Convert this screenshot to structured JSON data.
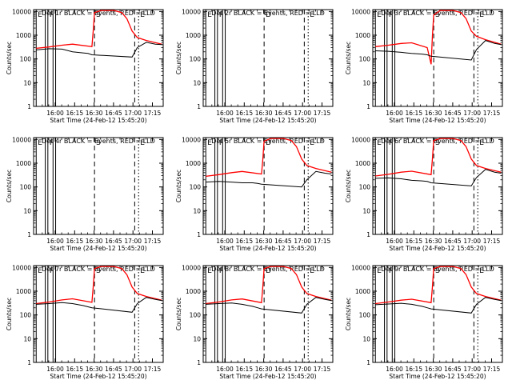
{
  "shared": {
    "type": "line",
    "x_ticks": [
      "16:00",
      "16:15",
      "16:30",
      "16:45",
      "17:00",
      "17:15"
    ],
    "xlabel": "Start Time (24-Feb-12 15:45:20)",
    "ylabel": "Counts/sec",
    "y_ticks": [
      "1",
      "10",
      "100",
      "1000",
      "10000"
    ],
    "ylim": [
      1,
      12000
    ],
    "xlim_minutes_after_start": [
      -2,
      98
    ],
    "y_scale": "log",
    "colors": {
      "events": "#000000",
      "lld": "#ff0000",
      "axes": "#000000",
      "background": "#ffffff"
    }
  },
  "chart_data": [
    {
      "type": "line",
      "title": "Det 1r BLACK = Events, RED = LLD",
      "markers": [
        {
          "minute": 0,
          "label": "E",
          "style": "solid"
        },
        {
          "minute": 7,
          "label": "",
          "style": "solid"
        },
        {
          "minute": 9,
          "label": "F",
          "style": "solid"
        },
        {
          "minute": 13,
          "label": "",
          "style": "solid"
        },
        {
          "minute": 15,
          "label": "",
          "style": "solid"
        },
        {
          "minute": 45,
          "label": "S",
          "style": "dashed"
        },
        {
          "minute": 76,
          "label": "",
          "style": "dashed"
        },
        {
          "minute": 79,
          "label": "E",
          "style": "dotted"
        }
      ],
      "series": [
        {
          "color": "#ff0000",
          "x": [
            0,
            10,
            20,
            28,
            43,
            44,
            45,
            50,
            60,
            66,
            70,
            74,
            78,
            85,
            97
          ],
          "y": [
            280,
            320,
            380,
            420,
            330,
            1500,
            9000,
            11000,
            11000,
            9000,
            5000,
            1500,
            800,
            600,
            420
          ]
        },
        {
          "color": "#000000",
          "x": [
            0,
            10,
            20,
            28,
            36,
            40,
            43,
            74,
            78,
            85,
            92,
            97
          ],
          "y": [
            240,
            270,
            260,
            200,
            180,
            170,
            150,
            120,
            300,
            500,
            420,
            400
          ]
        }
      ]
    },
    {
      "type": "line",
      "title": "Det 2r BLACK = Events, RED = LLD",
      "markers": [
        {
          "minute": 0,
          "label": "E",
          "style": "solid"
        },
        {
          "minute": 7,
          "label": "",
          "style": "solid"
        },
        {
          "minute": 9,
          "label": "F",
          "style": "solid"
        },
        {
          "minute": 13,
          "label": "",
          "style": "solid"
        },
        {
          "minute": 15,
          "label": "",
          "style": "solid"
        },
        {
          "minute": 45,
          "label": "D",
          "style": "dashed"
        },
        {
          "minute": 76,
          "label": "",
          "style": "dashed"
        },
        {
          "minute": 79,
          "label": "E",
          "style": "dotted"
        }
      ],
      "series": []
    },
    {
      "type": "line",
      "title": "Det 3r BLACK = Events, RED = LLD",
      "markers": [
        {
          "minute": 0,
          "label": "E",
          "style": "solid"
        },
        {
          "minute": 7,
          "label": "",
          "style": "solid"
        },
        {
          "minute": 9,
          "label": "F",
          "style": "solid"
        },
        {
          "minute": 13,
          "label": "",
          "style": "solid"
        },
        {
          "minute": 15,
          "label": "",
          "style": "solid"
        },
        {
          "minute": 45,
          "label": "S",
          "style": "dashed"
        },
        {
          "minute": 76,
          "label": "",
          "style": "dashed"
        },
        {
          "minute": 79,
          "label": "E",
          "style": "dotted"
        }
      ],
      "series": [
        {
          "color": "#ff0000",
          "x": [
            0,
            10,
            20,
            28,
            40,
            43,
            44,
            45,
            50,
            60,
            66,
            70,
            74,
            78,
            85,
            97
          ],
          "y": [
            330,
            380,
            450,
            480,
            300,
            60,
            900,
            7000,
            11000,
            11000,
            9000,
            5000,
            1500,
            900,
            650,
            420
          ]
        },
        {
          "color": "#000000",
          "x": [
            0,
            10,
            20,
            28,
            36,
            40,
            43,
            74,
            78,
            85,
            92,
            97
          ],
          "y": [
            220,
            210,
            190,
            170,
            160,
            150,
            130,
            90,
            250,
            600,
            450,
            400
          ]
        }
      ]
    },
    {
      "type": "line",
      "title": "Det 4r BLACK = Events, RED = LLD",
      "markers": [
        {
          "minute": 0,
          "label": "E",
          "style": "solid"
        },
        {
          "minute": 7,
          "label": "",
          "style": "solid"
        },
        {
          "minute": 9,
          "label": "F",
          "style": "solid"
        },
        {
          "minute": 13,
          "label": "",
          "style": "solid"
        },
        {
          "minute": 15,
          "label": "",
          "style": "solid"
        },
        {
          "minute": 45,
          "label": "S",
          "style": "dashed"
        },
        {
          "minute": 76,
          "label": "",
          "style": "dashed"
        },
        {
          "minute": 79,
          "label": "E",
          "style": "dotted"
        }
      ],
      "series": []
    },
    {
      "type": "line",
      "title": "Det 5r BLACK = Events, RED = LLD",
      "markers": [
        {
          "minute": 0,
          "label": "E",
          "style": "solid"
        },
        {
          "minute": 7,
          "label": "",
          "style": "solid"
        },
        {
          "minute": 9,
          "label": "F",
          "style": "solid"
        },
        {
          "minute": 13,
          "label": "",
          "style": "solid"
        },
        {
          "minute": 15,
          "label": "",
          "style": "solid"
        },
        {
          "minute": 45,
          "label": "D",
          "style": "dashed"
        },
        {
          "minute": 76,
          "label": "",
          "style": "dashed"
        },
        {
          "minute": 79,
          "label": "E",
          "style": "dotted"
        }
      ],
      "series": [
        {
          "color": "#ff0000",
          "x": [
            0,
            10,
            20,
            28,
            43,
            44,
            45,
            50,
            60,
            66,
            70,
            74,
            78,
            85,
            97
          ],
          "y": [
            280,
            330,
            400,
            450,
            350,
            1400,
            8500,
            11000,
            11000,
            9000,
            5000,
            1500,
            800,
            600,
            420
          ]
        },
        {
          "color": "#000000",
          "x": [
            0,
            10,
            20,
            28,
            36,
            40,
            43,
            74,
            78,
            85,
            92,
            97
          ],
          "y": [
            160,
            170,
            160,
            150,
            150,
            140,
            130,
            100,
            200,
            450,
            380,
            350
          ]
        }
      ]
    },
    {
      "type": "line",
      "title": "Det 6r BLACK = Events, RED = LLD",
      "markers": [
        {
          "minute": 0,
          "label": "E",
          "style": "solid"
        },
        {
          "minute": 7,
          "label": "",
          "style": "solid"
        },
        {
          "minute": 9,
          "label": "F",
          "style": "solid"
        },
        {
          "minute": 13,
          "label": "",
          "style": "solid"
        },
        {
          "minute": 15,
          "label": "",
          "style": "solid"
        },
        {
          "minute": 45,
          "label": "S",
          "style": "dashed"
        },
        {
          "minute": 76,
          "label": "",
          "style": "dashed"
        },
        {
          "minute": 79,
          "label": "E",
          "style": "dotted"
        }
      ],
      "series": [
        {
          "color": "#ff0000",
          "x": [
            0,
            10,
            20,
            28,
            43,
            44,
            45,
            50,
            60,
            66,
            70,
            74,
            78,
            85,
            97
          ],
          "y": [
            290,
            340,
            420,
            460,
            330,
            1500,
            9000,
            11000,
            11000,
            9000,
            5000,
            1500,
            800,
            600,
            420
          ]
        },
        {
          "color": "#000000",
          "x": [
            0,
            10,
            20,
            28,
            36,
            40,
            43,
            74,
            78,
            85,
            92,
            97
          ],
          "y": [
            230,
            240,
            220,
            190,
            180,
            170,
            150,
            110,
            250,
            550,
            420,
            380
          ]
        }
      ]
    },
    {
      "type": "line",
      "title": "Det 7r BLACK = Events, RED = LLD",
      "markers": [
        {
          "minute": 0,
          "label": "E",
          "style": "solid"
        },
        {
          "minute": 7,
          "label": "",
          "style": "solid"
        },
        {
          "minute": 9,
          "label": "F",
          "style": "solid"
        },
        {
          "minute": 13,
          "label": "",
          "style": "solid"
        },
        {
          "minute": 15,
          "label": "",
          "style": "solid"
        },
        {
          "minute": 45,
          "label": "S",
          "style": "dashed"
        },
        {
          "minute": 76,
          "label": "",
          "style": "dashed"
        },
        {
          "minute": 79,
          "label": "E",
          "style": "dotted"
        }
      ],
      "series": [
        {
          "color": "#ff0000",
          "x": [
            0,
            10,
            20,
            28,
            43,
            44,
            45,
            50,
            60,
            66,
            70,
            74,
            78,
            85,
            97
          ],
          "y": [
            300,
            350,
            430,
            480,
            340,
            1500,
            9000,
            11000,
            11000,
            9000,
            5000,
            1500,
            800,
            600,
            420
          ]
        },
        {
          "color": "#000000",
          "x": [
            0,
            10,
            20,
            28,
            36,
            40,
            43,
            74,
            78,
            85,
            92,
            97
          ],
          "y": [
            280,
            300,
            330,
            300,
            250,
            220,
            200,
            130,
            300,
            550,
            450,
            400
          ]
        }
      ]
    },
    {
      "type": "line",
      "title": "Det 8r BLACK = Events, RED = LLD",
      "markers": [
        {
          "minute": 0,
          "label": "E",
          "style": "solid"
        },
        {
          "minute": 7,
          "label": "",
          "style": "solid"
        },
        {
          "minute": 9,
          "label": "F",
          "style": "solid"
        },
        {
          "minute": 13,
          "label": "",
          "style": "solid"
        },
        {
          "minute": 15,
          "label": "",
          "style": "solid"
        },
        {
          "minute": 45,
          "label": "D",
          "style": "dashed"
        },
        {
          "minute": 76,
          "label": "",
          "style": "dashed"
        },
        {
          "minute": 79,
          "label": "E",
          "style": "dotted"
        }
      ],
      "series": [
        {
          "color": "#ff0000",
          "x": [
            0,
            10,
            20,
            28,
            43,
            44,
            45,
            50,
            60,
            66,
            70,
            74,
            78,
            85,
            97
          ],
          "y": [
            300,
            350,
            430,
            470,
            330,
            1500,
            9000,
            11000,
            11000,
            9000,
            5000,
            1500,
            800,
            600,
            420
          ]
        },
        {
          "color": "#000000",
          "x": [
            0,
            10,
            20,
            28,
            36,
            40,
            43,
            74,
            78,
            85,
            92,
            97
          ],
          "y": [
            280,
            300,
            320,
            280,
            230,
            200,
            180,
            120,
            280,
            550,
            450,
            400
          ]
        }
      ]
    },
    {
      "type": "line",
      "title": "Det 9r BLACK = Events, RED = LLD",
      "markers": [
        {
          "minute": 0,
          "label": "E",
          "style": "solid"
        },
        {
          "minute": 7,
          "label": "",
          "style": "solid"
        },
        {
          "minute": 9,
          "label": "F",
          "style": "solid"
        },
        {
          "minute": 13,
          "label": "",
          "style": "solid"
        },
        {
          "minute": 15,
          "label": "",
          "style": "solid"
        },
        {
          "minute": 45,
          "label": "S",
          "style": "dashed"
        },
        {
          "minute": 76,
          "label": "",
          "style": "dashed"
        },
        {
          "minute": 79,
          "label": "E",
          "style": "dotted"
        }
      ],
      "series": [
        {
          "color": "#ff0000",
          "x": [
            0,
            10,
            20,
            28,
            43,
            44,
            45,
            50,
            60,
            66,
            70,
            74,
            78,
            85,
            97
          ],
          "y": [
            300,
            350,
            420,
            460,
            330,
            1500,
            9000,
            11000,
            11000,
            9000,
            5000,
            1500,
            800,
            600,
            420
          ]
        },
        {
          "color": "#000000",
          "x": [
            0,
            10,
            20,
            28,
            36,
            40,
            43,
            74,
            78,
            85,
            92,
            97
          ],
          "y": [
            270,
            290,
            310,
            280,
            230,
            200,
            180,
            120,
            280,
            550,
            450,
            400
          ]
        }
      ]
    }
  ]
}
